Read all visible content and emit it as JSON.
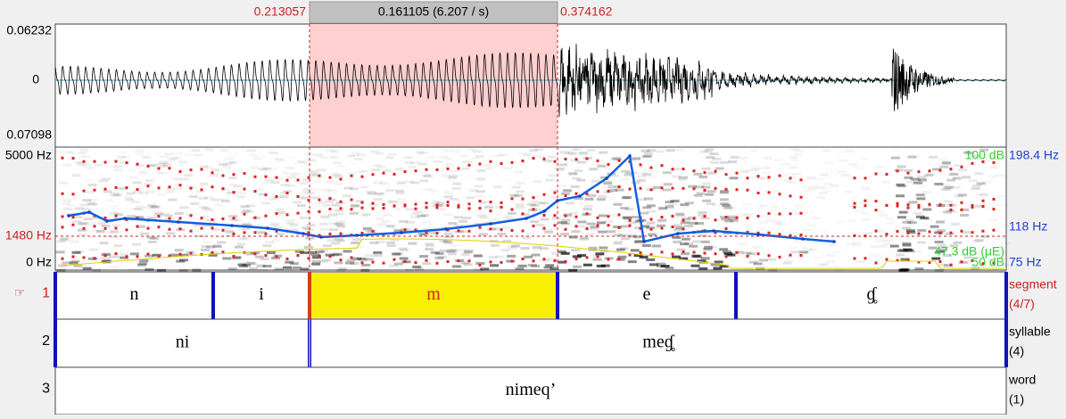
{
  "selection": {
    "start": "0.213057",
    "duration": "0.161105 (6.207 / s)",
    "end": "0.374162"
  },
  "waveform": {
    "top_label": "0.06232",
    "zero_label": "0",
    "bottom_label": "0.07098"
  },
  "spectrogram": {
    "freq_top": "5000 Hz",
    "freq_cursor": "1480 Hz",
    "freq_bottom": "0 Hz",
    "pitch_top": "198.4 Hz",
    "pitch_cursor": "118 Hz",
    "pitch_bottom": "75 Hz",
    "intensity_top": "100 dB",
    "intensity_value": "47.3 dB (μE)",
    "intensity_bottom": "50 dB"
  },
  "tiers": [
    {
      "number": "1",
      "pointer": "☞",
      "name": "segment",
      "count": "(4/7)",
      "intervals": [
        "n",
        "i",
        "m",
        "e",
        "ɠ̥"
      ]
    },
    {
      "number": "2",
      "name": "syllable",
      "count": "(4)",
      "intervals": [
        "ni",
        "meɠ̥"
      ]
    },
    {
      "number": "3",
      "name": "word",
      "count": "(1)",
      "intervals": [
        "nimeq’"
      ]
    }
  ]
}
